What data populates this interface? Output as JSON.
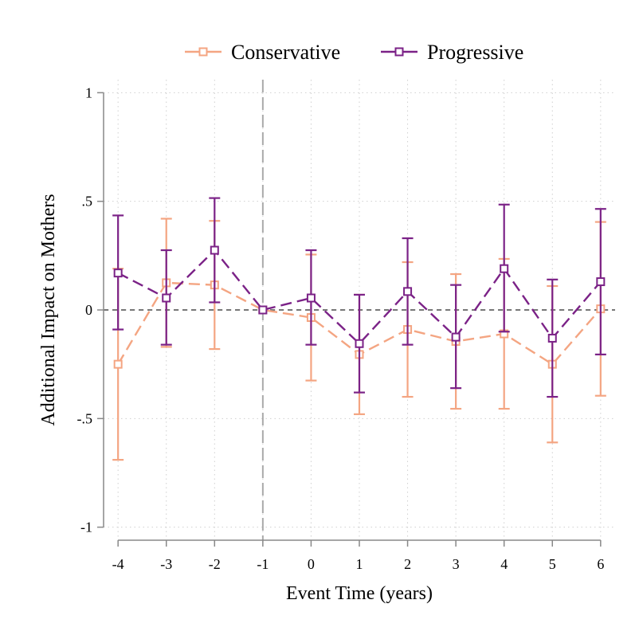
{
  "chart_data": {
    "type": "line",
    "xlabel": "Event Time (years)",
    "ylabel": "Additional Impact on Mothers",
    "x": [
      -4,
      -3,
      -2,
      -1,
      0,
      1,
      2,
      3,
      4,
      5,
      6
    ],
    "x_tick_labels": [
      "-4",
      "-3",
      "-2",
      "-1",
      "0",
      "1",
      "2",
      "3",
      "4",
      "5",
      "6"
    ],
    "y_ticks": [
      -1,
      -0.5,
      0,
      0.5,
      1
    ],
    "y_tick_labels": [
      "-1",
      "-.5",
      "0",
      ".5",
      "1"
    ],
    "xlim": [
      -4.3,
      6.3
    ],
    "ylim": [
      -1.06,
      1.06
    ],
    "grid": true,
    "reference_lines": [
      {
        "axis": "y",
        "value": 0,
        "style": "dashed",
        "color": "#777777"
      },
      {
        "axis": "x",
        "value": -1,
        "style": "long-dashed",
        "color": "#aaaaaa"
      }
    ],
    "legend_position": "top",
    "series": [
      {
        "name": "Conservative",
        "color": "#F4A582",
        "marker": "hollow-square",
        "values": [
          -0.25,
          0.125,
          0.115,
          0.0,
          -0.035,
          -0.205,
          -0.09,
          -0.145,
          -0.11,
          -0.25,
          0.005
        ],
        "ci_low": [
          -0.69,
          -0.17,
          -0.18,
          0.0,
          -0.325,
          -0.48,
          -0.4,
          -0.455,
          -0.455,
          -0.61,
          -0.395
        ],
        "ci_high": [
          0.19,
          0.42,
          0.41,
          0.0,
          0.255,
          0.07,
          0.22,
          0.165,
          0.235,
          0.11,
          0.405
        ]
      },
      {
        "name": "Progressive",
        "color": "#7B2287",
        "marker": "hollow-square",
        "values": [
          0.17,
          0.055,
          0.275,
          0.0,
          0.055,
          -0.155,
          0.085,
          -0.125,
          0.19,
          -0.13,
          0.13
        ],
        "ci_low": [
          -0.09,
          -0.16,
          0.035,
          0.0,
          -0.16,
          -0.38,
          -0.16,
          -0.36,
          -0.1,
          -0.4,
          -0.205
        ],
        "ci_high": [
          0.435,
          0.275,
          0.515,
          0.0,
          0.275,
          0.07,
          0.33,
          0.115,
          0.485,
          0.14,
          0.465
        ]
      }
    ]
  }
}
